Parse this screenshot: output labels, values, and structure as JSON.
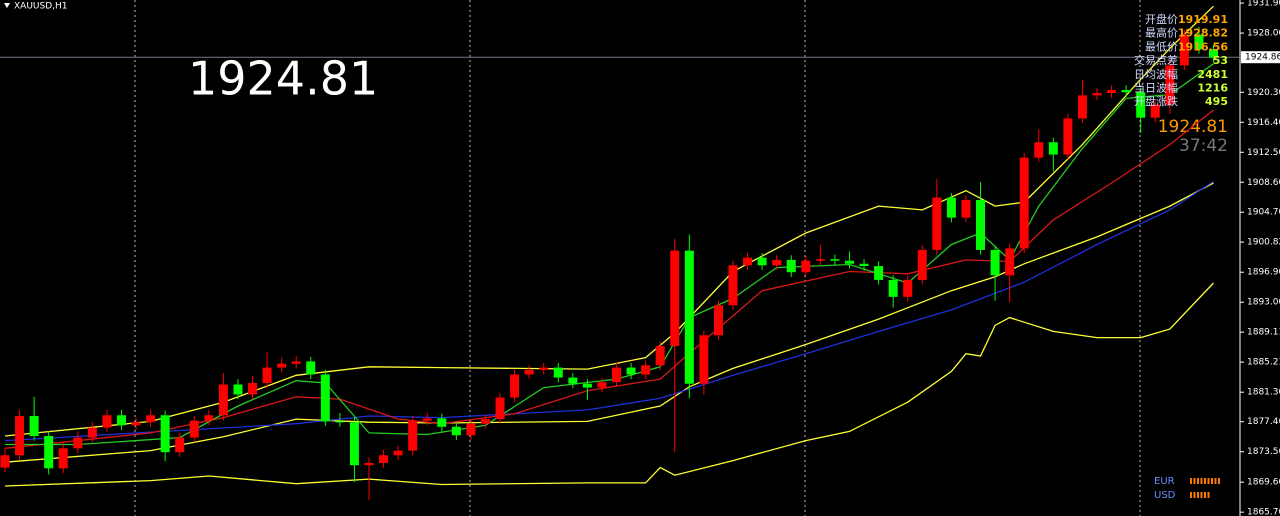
{
  "chart_data": {
    "type": "candlestick",
    "symbol": "XAUUSD,H1",
    "big_price": "1924.81",
    "up_color": "#ff0000",
    "down_color": "#00ff00",
    "ylim": [
      1865.2,
      1932.3
    ],
    "yticks": [
      {
        "value": 1865.7,
        "label": "1865.70"
      },
      {
        "value": 1869.6,
        "label": "1869.60"
      },
      1873.56,
      1877.46,
      {
        "value": 1881.3,
        "label": "1881.30"
      },
      1885.21,
      1889.11,
      {
        "value": 1893.0,
        "label": "1893.00"
      },
      {
        "value": 1896.9,
        "label": "1896.90"
      },
      1900.82,
      {
        "value": 1904.7,
        "label": "1904.70"
      },
      {
        "value": 1908.6,
        "label": "1908.60"
      },
      {
        "value": 1912.5,
        "label": "1912.50"
      },
      {
        "value": 1916.4,
        "label": "1916.40"
      },
      {
        "value": 1920.3,
        "label": "1920.30"
      },
      {
        "value": 1928.0,
        "label": "1928.00"
      },
      {
        "value": 1931.9,
        "label": "1931.90"
      }
    ],
    "current_price": 1924.86,
    "open": [
      1871.5,
      1873.1,
      1878.2,
      1875.6,
      1871.4,
      1874.0,
      1875.4,
      1876.7,
      1878.3,
      1877.0,
      1877.4,
      1878.3,
      1873.5,
      1875.4,
      1877.6,
      1878.3,
      1882.3,
      1881.0,
      1882.5,
      1884.5,
      1885.0,
      1885.3,
      1883.6,
      1877.5,
      1877.4,
      1871.8,
      1872.1,
      1873.1,
      1873.7,
      1877.6,
      1877.9,
      1876.8,
      1875.7,
      1877.2,
      1877.8,
      1880.6,
      1883.6,
      1884.2,
      1884.5,
      1883.2,
      1882.4,
      1881.9,
      1882.6,
      1884.5,
      1883.6,
      1884.8,
      1887.3,
      1899.7,
      1882.4,
      1888.7,
      1892.6,
      1897.8,
      1898.8,
      1897.8,
      1898.5,
      1896.9,
      1898.4,
      1898.6,
      1898.4,
      1898.0,
      1897.7,
      1895.9,
      1893.7,
      1895.9,
      1899.8,
      1906.6,
      1904.0,
      1906.3,
      1899.8,
      1896.5,
      1900.0,
      1911.8,
      1913.8,
      1912.2,
      1916.9,
      1919.9,
      1920.2,
      1920.6,
      1920.3,
      1917.0,
      1918.7,
      1923.8,
      1927.8,
      1925.9
    ],
    "high": [
      1874.0,
      1879.0,
      1880.7,
      1876.2,
      1874.8,
      1876.2,
      1877.4,
      1879.0,
      1879.0,
      1878.0,
      1879.0,
      1878.9,
      1876.0,
      1878.2,
      1879.0,
      1883.8,
      1883.0,
      1883.4,
      1886.5,
      1885.8,
      1886.0,
      1885.9,
      1884.2,
      1878.6,
      1878.0,
      1872.8,
      1873.8,
      1874.3,
      1878.2,
      1878.6,
      1878.5,
      1877.4,
      1877.8,
      1878.4,
      1881.2,
      1884.2,
      1884.8,
      1885.1,
      1885.1,
      1883.8,
      1883.0,
      1883.2,
      1885.1,
      1885.1,
      1885.4,
      1887.9,
      1901.2,
      1901.8,
      1889.3,
      1893.2,
      1898.4,
      1899.4,
      1899.4,
      1899.1,
      1899.1,
      1899.0,
      1900.5,
      1899.2,
      1899.6,
      1898.6,
      1898.3,
      1896.5,
      1896.5,
      1900.4,
      1909.0,
      1907.2,
      1906.9,
      1908.6,
      1900.4,
      1900.6,
      1912.4,
      1915.5,
      1914.4,
      1917.5,
      1921.9,
      1920.8,
      1921.2,
      1921.2,
      1920.9,
      1919.3,
      1924.4,
      1928.4,
      1928.8,
      1926.5
    ],
    "low": [
      1870.9,
      1872.5,
      1875.0,
      1870.6,
      1870.8,
      1873.4,
      1874.8,
      1876.1,
      1876.4,
      1876.4,
      1876.8,
      1872.3,
      1872.9,
      1874.8,
      1877.0,
      1877.6,
      1880.4,
      1880.4,
      1881.9,
      1883.9,
      1884.4,
      1883.0,
      1876.9,
      1876.8,
      1869.6,
      1867.3,
      1871.5,
      1872.5,
      1873.1,
      1877.0,
      1876.2,
      1875.1,
      1875.1,
      1876.6,
      1877.2,
      1880.0,
      1883.0,
      1883.6,
      1882.6,
      1881.8,
      1880.3,
      1881.3,
      1882.0,
      1883.0,
      1883.0,
      1884.2,
      1873.5,
      1880.5,
      1881.0,
      1888.1,
      1892.0,
      1897.2,
      1897.2,
      1897.2,
      1896.3,
      1896.3,
      1897.8,
      1897.8,
      1897.4,
      1897.1,
      1895.3,
      1892.3,
      1893.1,
      1895.3,
      1899.2,
      1903.4,
      1903.4,
      1899.2,
      1893.2,
      1893.0,
      1899.4,
      1911.2,
      1910.0,
      1911.6,
      1916.3,
      1919.3,
      1919.6,
      1919.7,
      1915.0,
      1916.4,
      1917.5,
      1923.2,
      1925.3,
      1924.2
    ],
    "close": [
      1873.1,
      1878.2,
      1875.6,
      1871.4,
      1874.0,
      1875.4,
      1876.7,
      1878.3,
      1877.0,
      1877.4,
      1878.3,
      1873.5,
      1875.4,
      1877.6,
      1878.3,
      1882.3,
      1881.0,
      1882.5,
      1884.5,
      1885.0,
      1885.3,
      1883.6,
      1877.5,
      1877.4,
      1871.8,
      1872.1,
      1873.1,
      1873.7,
      1877.6,
      1877.9,
      1876.8,
      1875.7,
      1877.2,
      1877.8,
      1880.6,
      1883.6,
      1884.2,
      1884.5,
      1883.2,
      1882.4,
      1881.9,
      1882.6,
      1884.5,
      1883.6,
      1884.8,
      1887.3,
      1899.7,
      1882.4,
      1888.7,
      1892.6,
      1897.8,
      1898.8,
      1897.8,
      1898.5,
      1896.9,
      1898.4,
      1898.6,
      1898.4,
      1898.0,
      1897.7,
      1895.9,
      1893.7,
      1895.9,
      1899.8,
      1906.6,
      1904.0,
      1906.3,
      1899.8,
      1896.5,
      1900.0,
      1911.8,
      1913.8,
      1912.2,
      1916.9,
      1919.9,
      1920.2,
      1920.6,
      1920.3,
      1917.0,
      1918.7,
      1923.8,
      1927.8,
      1925.9,
      1924.81
    ],
    "lines": [
      {
        "color": "#ffff33",
        "x": [
          0,
          10,
          15,
          20,
          25,
          30,
          40,
          44,
          46,
          50,
          55,
          60,
          63,
          66,
          68,
          70,
          74,
          78,
          80,
          83
        ],
        "values": [
          1875.6,
          1877.5,
          1880.0,
          1883.5,
          1884.6,
          1884.5,
          1884.3,
          1885.8,
          1889.0,
          1897.0,
          1902.0,
          1905.5,
          1905.0,
          1907.5,
          1905.5,
          1906.0,
          1913.5,
          1922.0,
          1926.0,
          1931.5
        ]
      },
      {
        "color": "#ffff33",
        "x": [
          0,
          10,
          15,
          20,
          25,
          30,
          40,
          45,
          47,
          50,
          55,
          60,
          65,
          68,
          70,
          75,
          80,
          83
        ],
        "values": [
          1872.2,
          1873.7,
          1875.5,
          1877.8,
          1877.4,
          1877.3,
          1877.5,
          1879.5,
          1882.0,
          1884.4,
          1887.5,
          1890.8,
          1894.5,
          1896.3,
          1898.0,
          1901.5,
          1905.5,
          1908.5
        ]
      },
      {
        "color": "#ffff33",
        "x": [
          0,
          10,
          14,
          20,
          25,
          30,
          40,
          44,
          45,
          46,
          50,
          55,
          58,
          62,
          65,
          66,
          67,
          68,
          69,
          72,
          75,
          78,
          80,
          83
        ],
        "values": [
          1869.1,
          1869.8,
          1870.4,
          1869.4,
          1870.0,
          1869.3,
          1869.5,
          1869.5,
          1871.5,
          1870.5,
          1872.4,
          1875.0,
          1876.2,
          1880.0,
          1884.0,
          1886.3,
          1886.0,
          1890.0,
          1891.0,
          1889.2,
          1888.4,
          1888.4,
          1889.5,
          1895.5
        ]
      },
      {
        "color": "#1f2fd8",
        "x": [
          0,
          20,
          25,
          30,
          40,
          45,
          50,
          55,
          60,
          65,
          70,
          75,
          80,
          83
        ],
        "values": [
          1875.0,
          1877.2,
          1878.2,
          1878.0,
          1879.0,
          1880.5,
          1883.5,
          1886.3,
          1889.2,
          1892.0,
          1895.6,
          1900.5,
          1905.0,
          1908.7
        ]
      },
      {
        "color": "#d81818",
        "x": [
          0,
          10,
          15,
          20,
          23,
          27,
          30,
          35,
          40,
          45,
          48,
          52,
          58,
          62,
          66,
          69,
          72,
          76,
          80,
          83
        ],
        "values": [
          1874.0,
          1876.0,
          1878.0,
          1880.7,
          1880.4,
          1877.8,
          1877.2,
          1878.5,
          1881.5,
          1883.0,
          1888.0,
          1894.5,
          1897.0,
          1896.7,
          1898.5,
          1898.3,
          1903.7,
          1908.5,
          1913.5,
          1918.0
        ]
      },
      {
        "color": "#22cc22",
        "x": [
          0,
          5,
          12,
          16,
          20,
          22,
          25,
          29,
          33,
          37,
          42,
          45,
          47,
          50,
          53,
          58,
          62,
          65,
          67,
          69,
          71,
          74,
          77,
          80,
          83
        ],
        "values": [
          1874.5,
          1874.5,
          1875.4,
          1879.5,
          1882.8,
          1882.5,
          1876.0,
          1875.8,
          1877.0,
          1881.9,
          1883.0,
          1884.6,
          1891.0,
          1893.5,
          1897.5,
          1897.9,
          1895.5,
          1900.5,
          1902.0,
          1898.5,
          1905.5,
          1913.0,
          1919.5,
          1920.0,
          1924.0
        ]
      }
    ],
    "info": [
      {
        "label": "开盘价",
        "value": 1919.91
      },
      {
        "label": "最高价",
        "value": 1928.82
      },
      {
        "label": "最低价",
        "value": 1916.56
      },
      {
        "label": "交易点差",
        "value": 53
      },
      {
        "label": "日均波幅",
        "value": 2481
      },
      {
        "label": "当日波幅",
        "value": 1216
      },
      {
        "label": "开盘涨跌",
        "value": 495
      }
    ],
    "panel_price": "1924.81",
    "timer": "37:42",
    "currencies": [
      {
        "name": "EUR",
        "value": 9
      },
      {
        "name": "USD",
        "value": 6
      }
    ]
  }
}
